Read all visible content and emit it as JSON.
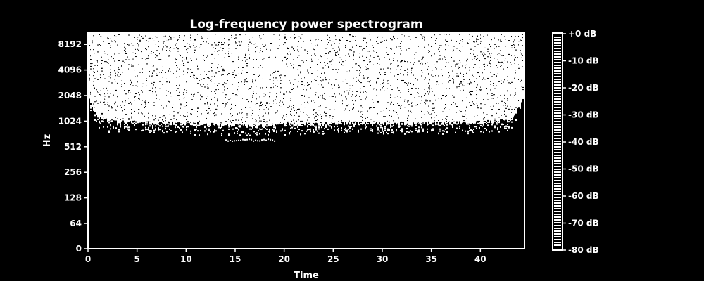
{
  "chart_data": {
    "type": "heatmap",
    "title": "Log-frequency power spectrogram",
    "xlabel": "Time",
    "ylabel": "Hz",
    "x_ticks": [
      0,
      5,
      10,
      15,
      20,
      25,
      30,
      35,
      40
    ],
    "x_range": [
      0,
      44.5
    ],
    "y_scale": "log2",
    "y_ticks": [
      0,
      64,
      128,
      256,
      512,
      1024,
      2048,
      4096,
      8192
    ],
    "y_range": [
      0,
      11025
    ],
    "colorbar": {
      "ticks": [
        "+0 dB",
        "-10 dB",
        "-20 dB",
        "-30 dB",
        "-40 dB",
        "-50 dB",
        "-60 dB",
        "-70 dB",
        "-80 dB"
      ],
      "range_db": [
        -80,
        0
      ]
    },
    "colors": {
      "background": "#000000",
      "foreground": "#ffffff"
    },
    "energy_profile": {
      "description_free_values": true,
      "time_points": [
        0,
        0.5,
        1,
        2,
        5,
        10,
        15,
        17,
        20,
        25,
        30,
        35,
        40,
        43,
        44,
        44.5
      ],
      "lower_edge_hz": [
        2000,
        1400,
        1150,
        1020,
        980,
        950,
        900,
        880,
        930,
        960,
        970,
        960,
        980,
        1050,
        1500,
        2200
      ]
    }
  }
}
